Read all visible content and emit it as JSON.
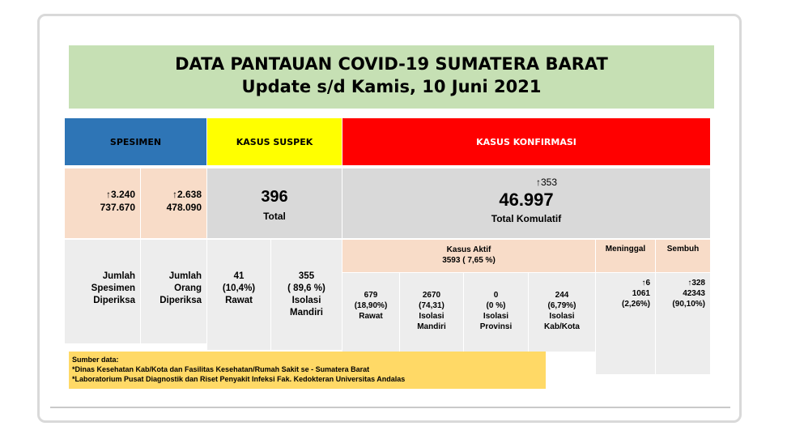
{
  "header": {
    "title": "DATA PANTAUAN COVID-19 SUMATERA BARAT",
    "subtitle": "Update s/d Kamis, 10 Juni 2021"
  },
  "columns": {
    "spesimen": "SPESIMEN",
    "suspek": "KASUS SUSPEK",
    "konfirmasi": "KASUS KONFIRMASI"
  },
  "spesimen": {
    "jumlah_spesimen": {
      "increase": "↑3.240",
      "value": "737.670",
      "label_line1": "Jumlah",
      "label_line2": "Spesimen",
      "label_line3": "Diperiksa"
    },
    "jumlah_orang": {
      "increase": "↑2.638",
      "value": "478.090",
      "label_line1": "Jumlah",
      "label_line2": "Orang",
      "label_line3": "Diperiksa"
    }
  },
  "suspek": {
    "total_value": "396",
    "total_label": "Total",
    "rawat": {
      "value": "41",
      "pct": "(10,4%)",
      "label": "Rawat"
    },
    "isolasi": {
      "value": "355",
      "pct": "( 89,6 %)",
      "label_line1": "Isolasi",
      "label_line2": "Mandiri"
    }
  },
  "konfirmasi": {
    "increase": "↑353",
    "total_value": "46.997",
    "total_label": "Total Komulatif",
    "aktif": {
      "title": "Kasus Aktif",
      "summary": "3593 ( 7,65 %)",
      "items": [
        {
          "value": "679",
          "pct": "(18,90%)",
          "label_line1": "Rawat",
          "label_line2": ""
        },
        {
          "value": "2670",
          "pct": "(74,31)",
          "label_line1": "Isolasi",
          "label_line2": "Mandiri"
        },
        {
          "value": "0",
          "pct": "(0 %)",
          "label_line1": "Isolasi",
          "label_line2": "Provinsi"
        },
        {
          "value": "244",
          "pct": "(6,79%)",
          "label_line1": "Isolasi",
          "label_line2": "Kab/Kota"
        }
      ]
    },
    "meninggal": {
      "title": "Meninggal",
      "increase": "↑6",
      "value": "1061",
      "pct": "(2,26%)"
    },
    "sembuh": {
      "title": "Sembuh",
      "increase": "↑328",
      "value": "42343",
      "pct": "(90,10%)"
    }
  },
  "source": {
    "title": "Sumber data:",
    "line1": "*Dinas Kesehatan Kab/Kota  dan Fasilitas Kesehatan/Rumah Sakit se - Sumatera Barat",
    "line2": "*Laboratorium  Pusat Diagnostik dan Riset  Penyakit Infeksi Fak. Kedokteran Universitas Andalas"
  },
  "colors": {
    "header_bg": "#c6e0b4",
    "spesimen_bg": "#2e75b6",
    "suspek_bg": "#ffff00",
    "konfirmasi_bg": "#ff0000",
    "peach": "#f8dcc8",
    "grey": "#d9d9d9",
    "source_bg": "#ffd966"
  }
}
